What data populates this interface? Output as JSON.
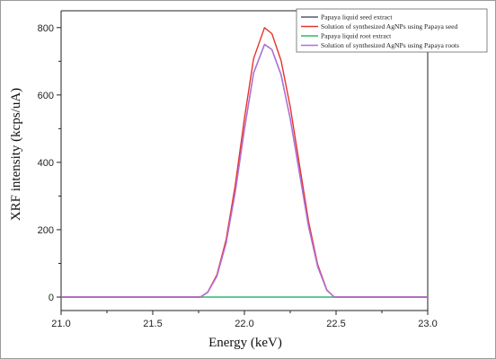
{
  "chart_data": {
    "type": "line",
    "xlabel": "Energy (keV)",
    "ylabel": "XRF intensity (kcps/uA)",
    "xlim": [
      21.0,
      23.0
    ],
    "ylim": [
      -40,
      850
    ],
    "x_ticks": [
      "21.0",
      "21.5",
      "22.0",
      "22.5",
      "23.0"
    ],
    "y_ticks": [
      "0",
      "200",
      "400",
      "600",
      "800"
    ],
    "legend_position": "top-right",
    "grid": false,
    "x": [
      21.0,
      21.76,
      21.8,
      21.85,
      21.9,
      21.95,
      22.0,
      22.05,
      22.11,
      22.15,
      22.2,
      22.25,
      22.3,
      22.35,
      22.4,
      22.45,
      22.49,
      23.0
    ],
    "series": [
      {
        "name": "Papaya liquid seed extract",
        "color": "#555b6e",
        "values": [
          0,
          0,
          14,
          62,
          160,
          312,
          498,
          665,
          750,
          735,
          660,
          530,
          370,
          210,
          90,
          20,
          0,
          0
        ]
      },
      {
        "name": "Solution of synthesized AgNPs using Papaya seed",
        "color": "#e8322b",
        "values": [
          0,
          0,
          15,
          66,
          170,
          332,
          530,
          708,
          800,
          782,
          702,
          565,
          394,
          224,
          96,
          21,
          0,
          0
        ]
      },
      {
        "name": "Papaya liquid root extract",
        "color": "#2fb86a",
        "values": [
          0,
          0,
          0,
          0,
          0,
          0,
          0,
          0,
          0,
          0,
          0,
          0,
          0,
          0,
          0,
          0,
          0,
          0
        ]
      },
      {
        "name": "Solution of synthesized AgNPs using Papaya roots",
        "color": "#b070e0",
        "values": [
          0,
          0,
          14,
          62,
          160,
          312,
          498,
          665,
          750,
          735,
          660,
          530,
          370,
          210,
          90,
          20,
          0,
          0
        ]
      }
    ]
  }
}
